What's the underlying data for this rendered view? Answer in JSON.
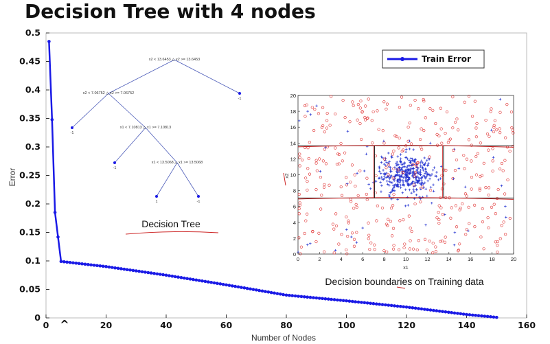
{
  "slide": {
    "title": "Decision Tree with 4 nodes"
  },
  "chart_data": [
    {
      "type": "line",
      "xlabel": "Number of Nodes",
      "ylabel": "Error",
      "xlim": [
        0,
        160
      ],
      "ylim": [
        0,
        0.5
      ],
      "x_ticks": [
        "0",
        "20",
        "40",
        "60",
        "80",
        "100",
        "120",
        "140",
        "160"
      ],
      "y_ticks": [
        "0",
        "0.05",
        "0.1",
        "0.15",
        "0.2",
        "0.25",
        "0.3",
        "0.35",
        "0.4",
        "0.45",
        "0.5"
      ],
      "legend": {
        "position": "top-right",
        "label": "Train Error"
      },
      "series": [
        {
          "name": "Train Error",
          "color": "#1a1ae6",
          "marker": "filled-circle",
          "x": [
            1,
            2,
            3,
            4,
            5,
            20,
            40,
            60,
            80,
            100,
            120,
            140,
            150
          ],
          "y": [
            0.485,
            0.348,
            0.185,
            0.142,
            0.099,
            0.09,
            0.075,
            0.058,
            0.04,
            0.03,
            0.019,
            0.006,
            0.001
          ]
        }
      ],
      "annotations": [
        {
          "text": "^",
          "x": 4
        }
      ]
    },
    {
      "type": "scatter",
      "caption": "Decision boundaries on Training data",
      "xlabel": "x1",
      "ylabel": "x2",
      "xlim": [
        0,
        20
      ],
      "ylim": [
        0,
        20
      ],
      "x_ticks": [
        "0",
        "2",
        "4",
        "6",
        "8",
        "10",
        "12",
        "14",
        "16",
        "18",
        "20"
      ],
      "y_ticks": [
        "0",
        "2",
        "4",
        "6",
        "8",
        "10",
        "12",
        "14",
        "16",
        "18",
        "20"
      ],
      "series": [
        {
          "label_kind": "class -1",
          "marker": "circle",
          "color": "#e03030"
        },
        {
          "label_kind": "class +1",
          "marker": "plus",
          "color": "#2030d0"
        }
      ],
      "boundaries": {
        "x1": [
          7.1,
          13.5
        ],
        "x2": [
          7.07,
          13.65
        ]
      }
    }
  ],
  "tree": {
    "caption": "Decision Tree",
    "nodes": [
      {
        "id": "root",
        "label": "x2 < 13.6453 △ x2 >= 13.6453"
      },
      {
        "id": "n2",
        "label": "x2 < 7.06752 △ x2 >= 7.06752"
      },
      {
        "id": "n3",
        "label": "x1 < 7.10813 △ x1 >= 7.10813"
      },
      {
        "id": "n4",
        "label": "x1 < 13.5068 △ x1 >= 13.5068"
      }
    ],
    "leaves": [
      "-1",
      "-1",
      "-1",
      "1",
      "-1"
    ]
  }
}
